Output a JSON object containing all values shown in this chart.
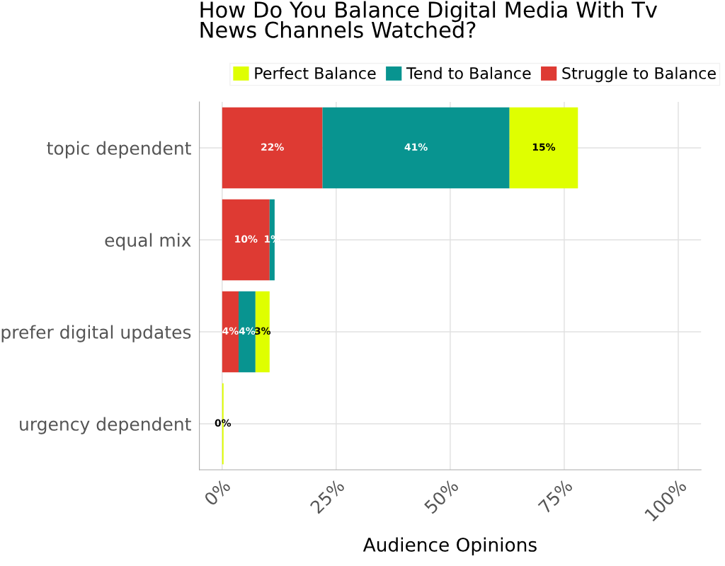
{
  "chart_data": {
    "type": "bar",
    "orientation": "horizontal",
    "stacked": true,
    "title": "How Do You Balance Digital Media With Tv\nNews Channels Watched?",
    "xlabel": "Audience Opinions",
    "categories": [
      "topic dependent",
      "equal mix",
      "prefer digital updates",
      "urgency dependent"
    ],
    "series": [
      {
        "name": "Struggle to Balance",
        "color": "#de3a33",
        "values": [
          22,
          10.4,
          3.6,
          null
        ],
        "value_labels": [
          "22%",
          "10%",
          "4%",
          null
        ]
      },
      {
        "name": "Tend to Balance",
        "color": "#089490",
        "values": [
          41,
          1.1,
          3.7,
          null
        ],
        "value_labels": [
          "41%",
          "1%",
          "4%",
          null
        ]
      },
      {
        "name": "Perfect Balance",
        "color": "#dfff00",
        "values": [
          15,
          null,
          3.1,
          0.3
        ],
        "value_labels": [
          "15%",
          null,
          "3%",
          "0%"
        ]
      }
    ],
    "xlim": [
      -5,
      105
    ],
    "xticks": [
      {
        "value": 0,
        "label": "0%"
      },
      {
        "value": 25,
        "label": "25%"
      },
      {
        "value": 50,
        "label": "50%"
      },
      {
        "value": 75,
        "label": "75%"
      },
      {
        "value": 100,
        "label": "100%"
      }
    ],
    "grid": true,
    "legend": "top"
  }
}
